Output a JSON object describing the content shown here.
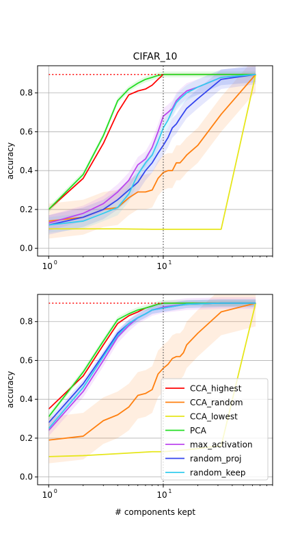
{
  "figure_title": "CIFAR_10",
  "chart_data": [
    {
      "type": "line",
      "title": "CIFAR_10",
      "xlabel": "",
      "ylabel": "accuracy",
      "xscale": "log",
      "xlim": [
        0.8,
        90
      ],
      "ylim": [
        -0.04,
        0.94
      ],
      "x_ticks": [
        {
          "value": 1,
          "label": "10",
          "exp": "0"
        },
        {
          "value": 10,
          "label": "10",
          "exp": "1"
        }
      ],
      "y_ticks": [
        "0.0",
        "0.2",
        "0.4",
        "0.6",
        "0.8"
      ],
      "y_tick_values": [
        0.0,
        0.2,
        0.4,
        0.6,
        0.8
      ],
      "grid": "horizontal",
      "ref_hline": 0.895,
      "ref_vline": 10,
      "series": [
        {
          "name": "CCA_highest",
          "color": "#ff0000",
          "x": [
            1,
            2,
            3,
            4,
            5,
            6,
            7,
            8,
            9,
            10,
            64
          ],
          "y": [
            0.2,
            0.36,
            0.54,
            0.7,
            0.79,
            0.81,
            0.82,
            0.84,
            0.87,
            0.895,
            0.895
          ]
        },
        {
          "name": "CCA_random",
          "color": "#ff7f0e",
          "band": 0.09,
          "x": [
            1,
            2,
            3,
            4,
            5,
            6,
            7,
            8,
            9,
            10,
            11,
            12,
            13,
            14,
            15,
            16,
            20,
            32,
            64
          ],
          "y": [
            0.14,
            0.16,
            0.2,
            0.21,
            0.26,
            0.29,
            0.29,
            0.3,
            0.36,
            0.39,
            0.4,
            0.4,
            0.44,
            0.44,
            0.46,
            0.48,
            0.53,
            0.69,
            0.895
          ]
        },
        {
          "name": "CCA_lowest",
          "color": "#e6e619",
          "x": [
            1,
            4,
            8,
            10,
            16,
            32,
            64
          ],
          "y": [
            0.1,
            0.1,
            0.098,
            0.098,
            0.098,
            0.098,
            0.895
          ]
        },
        {
          "name": "PCA",
          "color": "#22dd22",
          "band": 0.015,
          "x": [
            1,
            2,
            3,
            4,
            5,
            6,
            7,
            8,
            9,
            10,
            64
          ],
          "y": [
            0.2,
            0.38,
            0.58,
            0.76,
            0.82,
            0.85,
            0.87,
            0.88,
            0.89,
            0.895,
            0.895
          ]
        },
        {
          "name": "max_activation",
          "color": "#bb44ee",
          "band": 0.04,
          "x": [
            1,
            2,
            3,
            4,
            5,
            6,
            7,
            8,
            9,
            10,
            11,
            12,
            13,
            14,
            16,
            20,
            32,
            64
          ],
          "y": [
            0.13,
            0.18,
            0.23,
            0.29,
            0.35,
            0.43,
            0.46,
            0.52,
            0.6,
            0.68,
            0.7,
            0.72,
            0.76,
            0.78,
            0.81,
            0.83,
            0.88,
            0.895
          ]
        },
        {
          "name": "random_proj",
          "color": "#3344ee",
          "band": 0.05,
          "x": [
            1,
            2,
            3,
            4,
            5,
            6,
            7,
            8,
            9,
            10,
            11,
            12,
            13,
            14,
            16,
            20,
            32,
            64
          ],
          "y": [
            0.12,
            0.16,
            0.2,
            0.25,
            0.3,
            0.34,
            0.4,
            0.44,
            0.49,
            0.53,
            0.57,
            0.62,
            0.64,
            0.67,
            0.72,
            0.77,
            0.87,
            0.895
          ]
        },
        {
          "name": "random_keep",
          "color": "#33ccee",
          "band": 0.04,
          "x": [
            1,
            2,
            3,
            4,
            5,
            6,
            7,
            8,
            9,
            10,
            11,
            12,
            13,
            14,
            16,
            20,
            32,
            64
          ],
          "y": [
            0.12,
            0.14,
            0.18,
            0.21,
            0.28,
            0.38,
            0.44,
            0.48,
            0.55,
            0.62,
            0.66,
            0.71,
            0.75,
            0.77,
            0.8,
            0.83,
            0.88,
            0.895
          ]
        }
      ]
    },
    {
      "type": "line",
      "title": "",
      "xlabel": "# components kept",
      "ylabel": "accuracy",
      "xscale": "log",
      "xlim": [
        0.8,
        90
      ],
      "ylim": [
        -0.04,
        0.94
      ],
      "x_ticks": [
        {
          "value": 1,
          "label": "10",
          "exp": "0"
        },
        {
          "value": 10,
          "label": "10",
          "exp": "1"
        }
      ],
      "y_ticks": [
        "0.0",
        "0.2",
        "0.4",
        "0.6",
        "0.8"
      ],
      "y_tick_values": [
        0.0,
        0.2,
        0.4,
        0.6,
        0.8
      ],
      "grid": "horizontal",
      "ref_hline": 0.895,
      "ref_vline": 10,
      "legend": "lower-right",
      "series": [
        {
          "name": "CCA_highest",
          "color": "#ff0000",
          "x": [
            1,
            2,
            3,
            4,
            5,
            6,
            7,
            8,
            9,
            10,
            64
          ],
          "y": [
            0.35,
            0.52,
            0.68,
            0.79,
            0.83,
            0.85,
            0.87,
            0.88,
            0.89,
            0.895,
            0.895
          ]
        },
        {
          "name": "CCA_random",
          "color": "#ff7f0e",
          "band": 0.12,
          "x": [
            1,
            2,
            3,
            4,
            5,
            6,
            7,
            8,
            9,
            10,
            11,
            12,
            13,
            14,
            15,
            16,
            20,
            32,
            64
          ],
          "y": [
            0.19,
            0.21,
            0.29,
            0.32,
            0.36,
            0.42,
            0.43,
            0.45,
            0.53,
            0.56,
            0.58,
            0.61,
            0.62,
            0.62,
            0.64,
            0.68,
            0.74,
            0.85,
            0.895
          ]
        },
        {
          "name": "CCA_lowest",
          "color": "#e6e619",
          "x": [
            1,
            2,
            4,
            8,
            10,
            16,
            32,
            64
          ],
          "y": [
            0.105,
            0.11,
            0.12,
            0.13,
            0.13,
            0.14,
            0.16,
            0.895
          ]
        },
        {
          "name": "PCA",
          "color": "#22dd22",
          "band": 0.015,
          "x": [
            1,
            2,
            3,
            4,
            5,
            6,
            7,
            8,
            9,
            10,
            64
          ],
          "y": [
            0.31,
            0.54,
            0.7,
            0.81,
            0.84,
            0.86,
            0.87,
            0.88,
            0.89,
            0.895,
            0.895
          ]
        },
        {
          "name": "max_activation",
          "color": "#bb44ee",
          "band": 0.03,
          "x": [
            1,
            2,
            3,
            4,
            5,
            6,
            7,
            8,
            10,
            16,
            32,
            64
          ],
          "y": [
            0.24,
            0.44,
            0.6,
            0.72,
            0.78,
            0.82,
            0.84,
            0.86,
            0.875,
            0.89,
            0.895,
            0.895
          ]
        },
        {
          "name": "random_proj",
          "color": "#3344ee",
          "band": 0.02,
          "x": [
            1,
            2,
            3,
            4,
            5,
            6,
            7,
            8,
            10,
            16,
            32,
            64
          ],
          "y": [
            0.28,
            0.48,
            0.63,
            0.74,
            0.79,
            0.82,
            0.84,
            0.86,
            0.87,
            0.89,
            0.895,
            0.895
          ]
        },
        {
          "name": "random_keep",
          "color": "#33ccee",
          "band": 0.02,
          "x": [
            1,
            2,
            3,
            4,
            5,
            6,
            7,
            8,
            10,
            16,
            32,
            64
          ],
          "y": [
            0.25,
            0.46,
            0.62,
            0.73,
            0.79,
            0.82,
            0.84,
            0.86,
            0.87,
            0.89,
            0.895,
            0.895
          ]
        }
      ]
    }
  ]
}
